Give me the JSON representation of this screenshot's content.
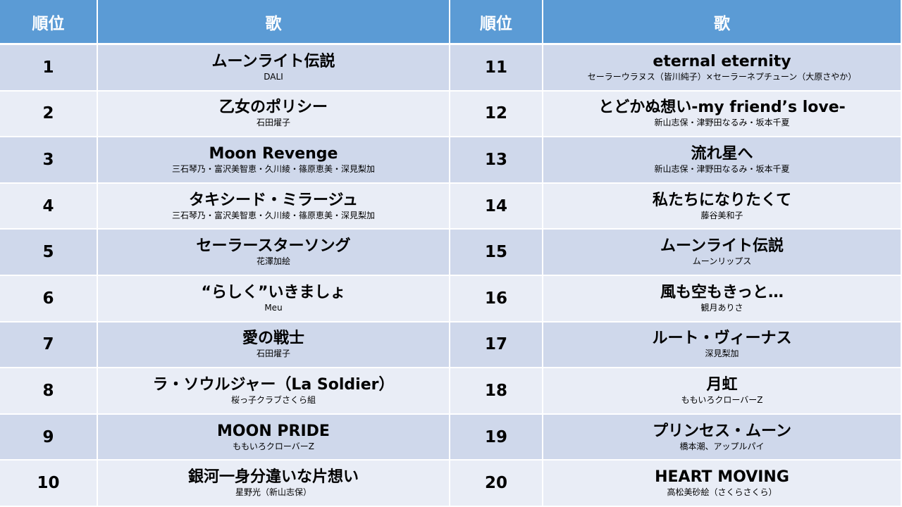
{
  "header": {
    "rank_label": "順位",
    "song_label": "歌"
  },
  "colors": {
    "header_bg": "#5b9bd5",
    "row_odd_bg": "#cfd8eb",
    "row_even_bg": "#e9edf6"
  },
  "rows": [
    {
      "left": {
        "rank": "1",
        "title": "ムーンライト伝説",
        "artist": "DALI"
      },
      "right": {
        "rank": "11",
        "title": "eternal eternity",
        "artist": "セーラーウラヌス（皆川純子）×セーラーネプチューン（大原さやか）"
      }
    },
    {
      "left": {
        "rank": "2",
        "title": "乙女のポリシー",
        "artist": "石田燿子"
      },
      "right": {
        "rank": "12",
        "title": "とどかぬ想い-my friend’s love-",
        "artist": "新山志保・津野田なるみ・坂本千夏"
      }
    },
    {
      "left": {
        "rank": "3",
        "title": "Moon Revenge",
        "artist": "三石琴乃・富沢美智恵・久川綾・篠原恵美・深見梨加"
      },
      "right": {
        "rank": "13",
        "title": "流れ星へ",
        "artist": "新山志保・津野田なるみ・坂本千夏"
      }
    },
    {
      "left": {
        "rank": "4",
        "title": "タキシード・ミラージュ",
        "artist": "三石琴乃・富沢美智恵・久川綾・篠原恵美・深見梨加"
      },
      "right": {
        "rank": "14",
        "title": "私たちになりたくて",
        "artist": "藤谷美和子"
      }
    },
    {
      "left": {
        "rank": "5",
        "title": "セーラースターソング",
        "artist": "花澤加絵"
      },
      "right": {
        "rank": "15",
        "title": "ムーンライト伝説",
        "artist": "ムーンリップス"
      }
    },
    {
      "left": {
        "rank": "6",
        "title": "“らしく”いきましょ",
        "artist": "Meu"
      },
      "right": {
        "rank": "16",
        "title": "風も空もきっと…",
        "artist": "観月ありさ"
      }
    },
    {
      "left": {
        "rank": "7",
        "title": "愛の戦士",
        "artist": "石田燿子"
      },
      "right": {
        "rank": "17",
        "title": "ルート・ヴィーナス",
        "artist": "深見梨加"
      }
    },
    {
      "left": {
        "rank": "8",
        "title": "ラ・ソウルジャー（La Soldier）",
        "artist": "桜っ子クラブさくら組"
      },
      "right": {
        "rank": "18",
        "title": "月虹",
        "artist": "ももいろクローバーZ"
      }
    },
    {
      "left": {
        "rank": "9",
        "title": "MOON PRIDE",
        "artist": "ももいろクローバーZ"
      },
      "right": {
        "rank": "19",
        "title": "プリンセス・ムーン",
        "artist": "橋本潮、アップルパイ"
      }
    },
    {
      "left": {
        "rank": "10",
        "title": "銀河一身分違いな片想い",
        "artist": "星野光（新山志保）"
      },
      "right": {
        "rank": "20",
        "title": "HEART MOVING",
        "artist": "高松美砂絵（さくらさくら）"
      }
    }
  ]
}
